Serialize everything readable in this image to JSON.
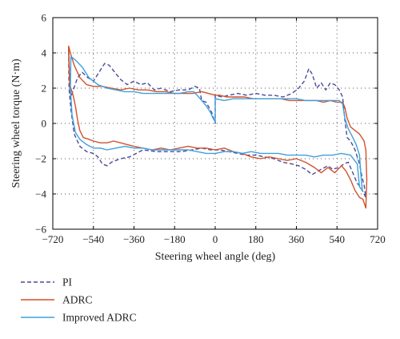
{
  "chart_data": {
    "type": "line",
    "xlabel": "Steering wheel angle (deg)",
    "ylabel": "Steering wheel torque (N·m)",
    "xlim": [
      -720,
      720
    ],
    "ylim": [
      -6,
      6
    ],
    "xticks": [
      -720,
      -540,
      -360,
      -180,
      0,
      180,
      360,
      540,
      720
    ],
    "xtick_labels": [
      "−720",
      "−540",
      "−360",
      "−180",
      "0",
      "180",
      "360",
      "540",
      "720"
    ],
    "yticks": [
      -6,
      -4,
      -2,
      0,
      2,
      4,
      6
    ],
    "ytick_labels": [
      "−6",
      "−4",
      "−2",
      "0",
      "2",
      "4",
      "6"
    ],
    "grid": true,
    "legend_position": "below",
    "series": [
      {
        "name": "PI",
        "color": "#4a4a9c",
        "dash": "dashed",
        "points": [
          [
            -650,
            4.3
          ],
          [
            -645,
            2.5
          ],
          [
            -640,
            1.5
          ],
          [
            -610,
            2.6
          ],
          [
            -590,
            2.9
          ],
          [
            -565,
            2.6
          ],
          [
            -540,
            2.4
          ],
          [
            -510,
            3.0
          ],
          [
            -490,
            3.4
          ],
          [
            -470,
            3.3
          ],
          [
            -445,
            2.9
          ],
          [
            -420,
            2.5
          ],
          [
            -390,
            2.2
          ],
          [
            -360,
            2.4
          ],
          [
            -330,
            2.2
          ],
          [
            -300,
            2.3
          ],
          [
            -270,
            1.9
          ],
          [
            -240,
            2.0
          ],
          [
            -200,
            1.8
          ],
          [
            -160,
            1.9
          ],
          [
            -120,
            1.9
          ],
          [
            -90,
            2.1
          ],
          [
            -70,
            2.0
          ],
          [
            -60,
            1.3
          ],
          [
            -40,
            1.2
          ],
          [
            -15,
            0.6
          ],
          [
            0,
            0.0
          ],
          [
            0,
            1.6
          ],
          [
            30,
            1.5
          ],
          [
            60,
            1.6
          ],
          [
            100,
            1.7
          ],
          [
            140,
            1.6
          ],
          [
            180,
            1.7
          ],
          [
            220,
            1.6
          ],
          [
            260,
            1.6
          ],
          [
            300,
            1.5
          ],
          [
            340,
            1.7
          ],
          [
            370,
            2.0
          ],
          [
            395,
            2.4
          ],
          [
            415,
            3.1
          ],
          [
            430,
            2.8
          ],
          [
            450,
            2.0
          ],
          [
            470,
            2.3
          ],
          [
            490,
            1.9
          ],
          [
            510,
            2.3
          ],
          [
            530,
            2.2
          ],
          [
            550,
            1.9
          ],
          [
            565,
            1.5
          ],
          [
            575,
            0.2
          ],
          [
            585,
            -0.8
          ],
          [
            600,
            -1.0
          ],
          [
            620,
            -1.5
          ],
          [
            640,
            -2.3
          ],
          [
            650,
            -3.0
          ],
          [
            660,
            -3.5
          ],
          [
            668,
            -4.2
          ],
          [
            660,
            -4.0
          ],
          [
            645,
            -3.6
          ],
          [
            630,
            -3.4
          ],
          [
            610,
            -2.8
          ],
          [
            590,
            -2.2
          ],
          [
            570,
            -2.3
          ],
          [
            550,
            -2.5
          ],
          [
            520,
            -2.6
          ],
          [
            500,
            -2.4
          ],
          [
            470,
            -2.6
          ],
          [
            430,
            -2.9
          ],
          [
            400,
            -2.6
          ],
          [
            370,
            -2.4
          ],
          [
            340,
            -2.3
          ],
          [
            300,
            -2.2
          ],
          [
            260,
            -2.0
          ],
          [
            220,
            -1.9
          ],
          [
            180,
            -1.8
          ],
          [
            140,
            -1.8
          ],
          [
            100,
            -1.7
          ],
          [
            60,
            -1.6
          ],
          [
            20,
            -1.5
          ],
          [
            -20,
            -1.5
          ],
          [
            -60,
            -1.4
          ],
          [
            -100,
            -1.5
          ],
          [
            -150,
            -1.6
          ],
          [
            -200,
            -1.6
          ],
          [
            -260,
            -1.6
          ],
          [
            -320,
            -1.5
          ],
          [
            -380,
            -1.9
          ],
          [
            -420,
            -2.0
          ],
          [
            -460,
            -2.2
          ],
          [
            -480,
            -2.4
          ],
          [
            -500,
            -2.3
          ],
          [
            -520,
            -1.9
          ],
          [
            -540,
            -1.7
          ],
          [
            -570,
            -1.6
          ],
          [
            -600,
            -1.3
          ],
          [
            -625,
            -0.6
          ],
          [
            -640,
            0.8
          ],
          [
            -648,
            2.0
          ],
          [
            -650,
            4.3
          ]
        ]
      },
      {
        "name": "ADRC",
        "color": "#d2522a",
        "dash": "solid",
        "points": [
          [
            -650,
            4.4
          ],
          [
            -645,
            2.2
          ],
          [
            -630,
            1.6
          ],
          [
            -620,
            1.0
          ],
          [
            -610,
            0.2
          ],
          [
            -600,
            -0.4
          ],
          [
            -585,
            -0.8
          ],
          [
            -560,
            -0.9
          ],
          [
            -540,
            -1.0
          ],
          [
            -510,
            -1.1
          ],
          [
            -480,
            -1.1
          ],
          [
            -450,
            -1.0
          ],
          [
            -420,
            -1.1
          ],
          [
            -390,
            -1.2
          ],
          [
            -360,
            -1.3
          ],
          [
            -320,
            -1.4
          ],
          [
            -280,
            -1.5
          ],
          [
            -240,
            -1.4
          ],
          [
            -200,
            -1.5
          ],
          [
            -160,
            -1.4
          ],
          [
            -120,
            -1.3
          ],
          [
            -80,
            -1.4
          ],
          [
            -40,
            -1.4
          ],
          [
            0,
            -1.5
          ],
          [
            40,
            -1.4
          ],
          [
            80,
            -1.6
          ],
          [
            120,
            -1.7
          ],
          [
            160,
            -1.9
          ],
          [
            200,
            -2.0
          ],
          [
            240,
            -1.9
          ],
          [
            280,
            -2.0
          ],
          [
            320,
            -2.1
          ],
          [
            360,
            -2.0
          ],
          [
            400,
            -2.2
          ],
          [
            440,
            -2.5
          ],
          [
            470,
            -2.8
          ],
          [
            500,
            -2.5
          ],
          [
            530,
            -2.8
          ],
          [
            560,
            -2.4
          ],
          [
            580,
            -2.7
          ],
          [
            600,
            -3.2
          ],
          [
            620,
            -3.8
          ],
          [
            640,
            -4.2
          ],
          [
            655,
            -4.3
          ],
          [
            668,
            -4.8
          ],
          [
            672,
            -3.2
          ],
          [
            668,
            -1.5
          ],
          [
            660,
            -1.0
          ],
          [
            640,
            -0.6
          ],
          [
            620,
            -0.4
          ],
          [
            600,
            -0.2
          ],
          [
            585,
            0.3
          ],
          [
            575,
            0.9
          ],
          [
            565,
            1.2
          ],
          [
            540,
            1.2
          ],
          [
            510,
            1.3
          ],
          [
            480,
            1.2
          ],
          [
            450,
            1.3
          ],
          [
            410,
            1.3
          ],
          [
            370,
            1.3
          ],
          [
            330,
            1.3
          ],
          [
            290,
            1.4
          ],
          [
            250,
            1.4
          ],
          [
            210,
            1.4
          ],
          [
            170,
            1.4
          ],
          [
            130,
            1.5
          ],
          [
            90,
            1.5
          ],
          [
            50,
            1.5
          ],
          [
            20,
            1.6
          ],
          [
            0,
            1.6
          ],
          [
            -30,
            1.7
          ],
          [
            -60,
            1.8
          ],
          [
            -100,
            1.7
          ],
          [
            -140,
            1.7
          ],
          [
            -180,
            1.7
          ],
          [
            -220,
            1.8
          ],
          [
            -260,
            1.8
          ],
          [
            -300,
            1.9
          ],
          [
            -340,
            1.9
          ],
          [
            -380,
            2.0
          ],
          [
            -420,
            1.9
          ],
          [
            -460,
            2.0
          ],
          [
            -500,
            2.1
          ],
          [
            -540,
            2.1
          ],
          [
            -570,
            2.2
          ],
          [
            -600,
            2.6
          ],
          [
            -625,
            3.3
          ],
          [
            -640,
            3.9
          ],
          [
            -650,
            4.4
          ]
        ]
      },
      {
        "name": "Improved ADRC",
        "color": "#3ea1dc",
        "dash": "solid",
        "points": [
          [
            -640,
            3.8
          ],
          [
            -620,
            3.6
          ],
          [
            -590,
            3.2
          ],
          [
            -560,
            2.6
          ],
          [
            -520,
            2.2
          ],
          [
            -480,
            2.0
          ],
          [
            -440,
            1.9
          ],
          [
            -400,
            1.8
          ],
          [
            -360,
            1.8
          ],
          [
            -320,
            1.7
          ],
          [
            -280,
            1.7
          ],
          [
            -240,
            1.7
          ],
          [
            -200,
            1.7
          ],
          [
            -160,
            1.7
          ],
          [
            -120,
            1.8
          ],
          [
            -95,
            1.8
          ],
          [
            -80,
            1.6
          ],
          [
            -60,
            1.3
          ],
          [
            -40,
            1.0
          ],
          [
            -20,
            0.6
          ],
          [
            -10,
            0.3
          ],
          [
            0,
            0.1
          ],
          [
            0,
            1.4
          ],
          [
            40,
            1.3
          ],
          [
            80,
            1.4
          ],
          [
            120,
            1.4
          ],
          [
            160,
            1.4
          ],
          [
            200,
            1.4
          ],
          [
            240,
            1.4
          ],
          [
            280,
            1.4
          ],
          [
            320,
            1.4
          ],
          [
            360,
            1.4
          ],
          [
            400,
            1.3
          ],
          [
            440,
            1.3
          ],
          [
            480,
            1.3
          ],
          [
            520,
            1.3
          ],
          [
            550,
            1.3
          ],
          [
            565,
            1.1
          ],
          [
            575,
            0.3
          ],
          [
            590,
            -0.3
          ],
          [
            610,
            -0.8
          ],
          [
            625,
            -1.2
          ],
          [
            640,
            -1.8
          ],
          [
            645,
            -2.8
          ],
          [
            650,
            -3.5
          ],
          [
            652,
            -3.8
          ],
          [
            640,
            -3.6
          ],
          [
            630,
            -2.3
          ],
          [
            600,
            -1.8
          ],
          [
            560,
            -1.7
          ],
          [
            520,
            -1.8
          ],
          [
            480,
            -1.8
          ],
          [
            440,
            -1.9
          ],
          [
            400,
            -1.8
          ],
          [
            360,
            -1.8
          ],
          [
            320,
            -1.8
          ],
          [
            280,
            -1.7
          ],
          [
            240,
            -1.7
          ],
          [
            200,
            -1.7
          ],
          [
            160,
            -1.6
          ],
          [
            120,
            -1.7
          ],
          [
            80,
            -1.6
          ],
          [
            40,
            -1.6
          ],
          [
            0,
            -1.7
          ],
          [
            -40,
            -1.7
          ],
          [
            -80,
            -1.6
          ],
          [
            -120,
            -1.5
          ],
          [
            -160,
            -1.5
          ],
          [
            -200,
            -1.5
          ],
          [
            -240,
            -1.5
          ],
          [
            -280,
            -1.5
          ],
          [
            -320,
            -1.4
          ],
          [
            -360,
            -1.4
          ],
          [
            -400,
            -1.3
          ],
          [
            -440,
            -1.4
          ],
          [
            -480,
            -1.5
          ],
          [
            -510,
            -1.4
          ],
          [
            -540,
            -1.4
          ],
          [
            -570,
            -1.2
          ],
          [
            -600,
            -0.9
          ],
          [
            -620,
            -0.5
          ],
          [
            -635,
            0.5
          ],
          [
            -642,
            2.0
          ],
          [
            -640,
            3.8
          ]
        ]
      }
    ]
  }
}
